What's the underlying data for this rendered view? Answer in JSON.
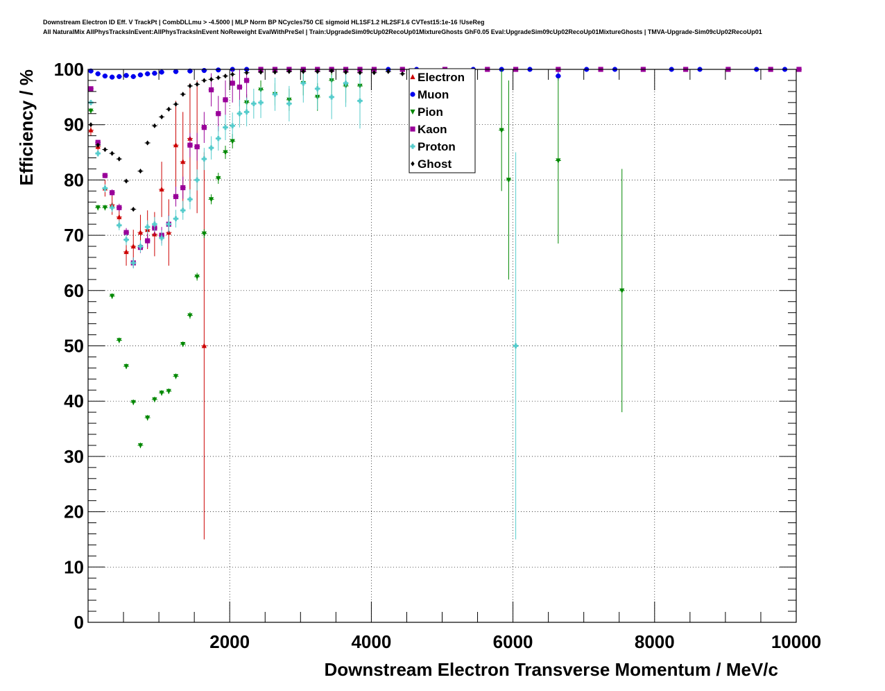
{
  "header": {
    "line1": "Downstream Electron ID Eff. V TrackPt | CombDLLmu > -4.5000 | MLP Norm BP NCycles750 CE sigmoid HL1SF1.2 HL2SF1.6 CVTest15:1e-16 !UseReg",
    "line2": "All NaturalMix AllPhysTracksInEvent:AllPhysTracksInEvent NoReweight EvalWithPreSel | Train:UpgradeSim09cUp02RecoUp01MixtureGhosts GhF0.05 Eval:UpgradeSim09cUp02RecoUp01MixtureGhosts | TMVA-Upgrade-Sim09cUp02RecoUp01"
  },
  "chart_data": {
    "type": "scatter",
    "title": "",
    "xlabel": "Downstream Electron Transverse Momentum / MeV/c",
    "ylabel": "Efficiency / %",
    "xlim": [
      0,
      10000
    ],
    "ylim": [
      0,
      100
    ],
    "x_ticks": [
      2000,
      4000,
      6000,
      8000,
      10000
    ],
    "y_ticks": [
      0,
      10,
      20,
      30,
      40,
      50,
      60,
      70,
      80,
      90,
      100
    ],
    "grid": true,
    "legend_position": "top-center",
    "series": [
      {
        "name": "Electron",
        "color": "#cc0000",
        "marker": "triangle-up",
        "x": [
          0,
          100,
          200,
          300,
          400,
          500,
          600,
          700,
          800,
          900,
          1000,
          1100,
          1200,
          1300,
          1400,
          1500,
          1600
        ],
        "y": [
          89,
          86,
          78.5,
          75.5,
          73.3,
          67,
          68,
          70.5,
          71,
          70.2,
          78.3,
          70.5,
          86.3,
          83.3,
          87.5,
          86,
          50
        ],
        "err": [
          1,
          1.2,
          1.5,
          1.8,
          2,
          2.5,
          3,
          3.2,
          3.5,
          4,
          5,
          6,
          8,
          9,
          10,
          12,
          35
        ]
      },
      {
        "name": "Muon",
        "color": "#0000ee",
        "marker": "circle",
        "x": [
          0,
          100,
          200,
          300,
          400,
          500,
          600,
          700,
          800,
          900,
          1000,
          1200,
          1400,
          1600,
          1800,
          2000,
          2200,
          2400,
          2600,
          2800,
          3000,
          3400,
          3800,
          4200,
          4600,
          5000,
          5400,
          5800,
          6200,
          6600,
          7000,
          7400,
          7800,
          8200,
          8600,
          9000,
          9400,
          9800,
          10000
        ],
        "y": [
          99.7,
          99.2,
          98.8,
          98.6,
          98.7,
          98.9,
          98.7,
          99,
          99.2,
          99.3,
          99.5,
          99.6,
          99.7,
          99.8,
          99.9,
          100,
          100,
          100,
          100,
          100,
          100,
          100,
          100,
          100,
          100,
          100,
          100,
          100,
          100,
          98.8,
          100,
          100,
          100,
          100,
          100,
          100,
          100,
          100,
          100
        ],
        "err": [
          0.1,
          0.1,
          0.1,
          0.1,
          0.1,
          0.1,
          0.1,
          0.1,
          0.1,
          0.1,
          0.1,
          0.1,
          0.1,
          0.1,
          0.1,
          0,
          0,
          0,
          0,
          0,
          0,
          0,
          0,
          0,
          0,
          0,
          0,
          0,
          0,
          0.8,
          0,
          0,
          0,
          0,
          0,
          0,
          0,
          0,
          0
        ]
      },
      {
        "name": "Pion",
        "color": "#008800",
        "marker": "triangle-down",
        "x": [
          0,
          100,
          200,
          300,
          400,
          500,
          600,
          700,
          800,
          900,
          1000,
          1100,
          1200,
          1300,
          1400,
          1500,
          1600,
          1700,
          1800,
          1900,
          2000,
          2200,
          2400,
          2600,
          2800,
          3000,
          3200,
          3400,
          3600,
          3800,
          5800,
          5900,
          6600,
          7500
        ],
        "y": [
          92.5,
          75,
          75,
          59,
          51,
          46.3,
          39.8,
          32,
          37,
          40.3,
          41.5,
          41.8,
          44.5,
          50.3,
          55.5,
          62.5,
          70.3,
          76.5,
          80.3,
          85,
          87,
          94,
          96.3,
          95.5,
          94.5,
          97.5,
          95,
          98,
          97,
          97,
          89,
          80,
          83.5,
          60
        ],
        "err": [
          0.5,
          0.5,
          0.5,
          0.5,
          0.5,
          0.5,
          0.5,
          0.5,
          0.5,
          0.5,
          0.5,
          0.5,
          0.5,
          0.5,
          0.6,
          0.7,
          0.8,
          0.9,
          1,
          1.2,
          1.3,
          1.5,
          1.7,
          2,
          2,
          2.2,
          2.5,
          2.5,
          3,
          3,
          11,
          18,
          15,
          22
        ]
      },
      {
        "name": "Kaon",
        "color": "#990099",
        "marker": "square",
        "x": [
          0,
          100,
          200,
          300,
          400,
          500,
          600,
          700,
          800,
          900,
          1000,
          1100,
          1200,
          1300,
          1400,
          1500,
          1600,
          1700,
          1800,
          1900,
          2000,
          2100,
          2200,
          2400,
          2600,
          2800,
          3000,
          3200,
          3400,
          3600,
          3800,
          4000,
          4400,
          5000,
          5600,
          6000,
          6600,
          7200,
          7800,
          8400,
          9000,
          9600,
          10000
        ],
        "y": [
          96.5,
          86.8,
          80.8,
          77.7,
          75,
          70.5,
          65,
          67.8,
          69,
          71.3,
          70,
          72,
          77,
          78.6,
          86.3,
          86,
          89.5,
          96.3,
          92,
          94.5,
          97.5,
          96.8,
          98,
          100,
          100,
          100,
          100,
          100,
          100,
          100,
          100,
          100,
          100,
          100,
          100,
          100,
          100,
          100,
          100,
          100,
          100,
          100,
          100
        ],
        "err": [
          0.3,
          0.4,
          0.5,
          0.6,
          0.7,
          0.8,
          0.9,
          1,
          1.2,
          1.3,
          1.5,
          1.6,
          1.8,
          2,
          2.2,
          2.5,
          2.8,
          3,
          3.2,
          3.5,
          3.5,
          3.5,
          3.5,
          0,
          0,
          0,
          0,
          0,
          0,
          0,
          0,
          0,
          0,
          0,
          0,
          0,
          0,
          0,
          0,
          0,
          0,
          0,
          0
        ]
      },
      {
        "name": "Proton",
        "color": "#55cccc",
        "marker": "cross",
        "x": [
          0,
          100,
          200,
          300,
          400,
          500,
          600,
          700,
          800,
          900,
          1000,
          1100,
          1200,
          1300,
          1400,
          1500,
          1600,
          1700,
          1800,
          1900,
          2000,
          2100,
          2200,
          2300,
          2400,
          2600,
          2800,
          3000,
          3200,
          3400,
          3600,
          3800,
          6000
        ],
        "y": [
          94,
          84.8,
          78.5,
          75,
          71.8,
          69.2,
          65,
          68,
          71.5,
          72,
          69.5,
          72,
          73,
          74.5,
          76.5,
          80,
          83.8,
          85.8,
          87.5,
          89.5,
          89.8,
          92,
          92.3,
          93.8,
          94,
          95.5,
          93.8,
          97.5,
          96.5,
          95,
          97.5,
          94.3,
          50
        ],
        "err": [
          0.5,
          0.6,
          0.7,
          0.8,
          0.9,
          1,
          1,
          1.1,
          1.2,
          1.3,
          1.4,
          1.5,
          1.6,
          1.7,
          1.8,
          1.9,
          2,
          2.1,
          2.2,
          2.3,
          2.4,
          2.5,
          2.6,
          2.7,
          2.8,
          3,
          3.2,
          3.5,
          3.8,
          4,
          4.3,
          5,
          35
        ]
      },
      {
        "name": "Ghost",
        "color": "#000000",
        "marker": "diamond",
        "x": [
          0,
          100,
          200,
          300,
          400,
          500,
          600,
          700,
          800,
          900,
          1000,
          1100,
          1200,
          1300,
          1400,
          1500,
          1600,
          1700,
          1800,
          1900,
          2000,
          2200,
          2400,
          2600,
          2800,
          3000,
          3200,
          3400,
          3600,
          3800,
          4000,
          4200,
          4400,
          4600,
          4800
        ],
        "y": [
          90,
          86.3,
          85.5,
          84.8,
          83.8,
          79.8,
          74.7,
          81.6,
          86.7,
          89.8,
          91.4,
          92.8,
          93.7,
          95.5,
          97,
          97.3,
          98,
          98.2,
          98.5,
          98.8,
          99.1,
          99.4,
          99.5,
          99.5,
          99.6,
          99.6,
          99.6,
          99.7,
          99.5,
          99.4,
          99.4,
          99.6,
          99.2,
          99.7,
          99.7
        ],
        "err": [
          0.2,
          0.2,
          0.2,
          0.2,
          0.2,
          0.2,
          0.2,
          0.2,
          0.2,
          0.2,
          0.2,
          0.2,
          0.2,
          0.2,
          0.2,
          0.2,
          0.2,
          0.2,
          0.2,
          0.2,
          0.2,
          0.2,
          0.2,
          0.2,
          0.2,
          0.2,
          0.2,
          0.2,
          0.2,
          0.2,
          0.2,
          0.2,
          0.2,
          0.2,
          0.2
        ]
      }
    ]
  }
}
